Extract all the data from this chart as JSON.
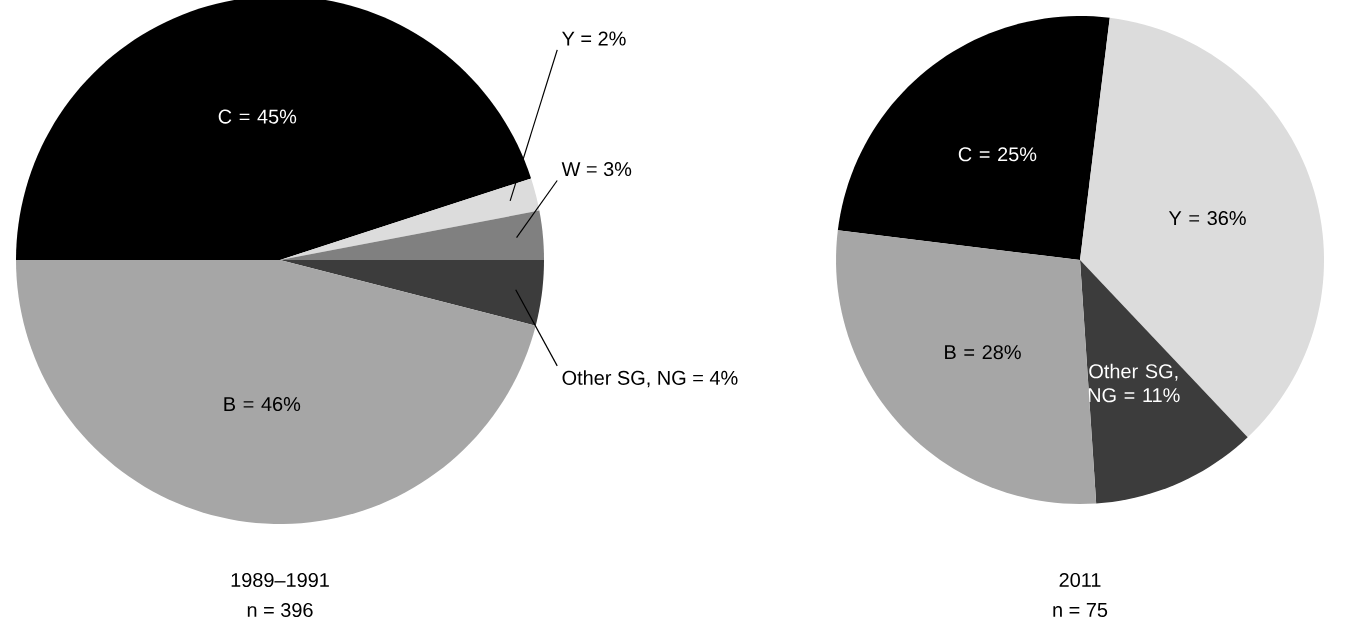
{
  "chart_data": [
    {
      "type": "pie",
      "title": "1989–1991",
      "subtitle": "n = 396",
      "categories": [
        "C = 45%",
        "Y = 2%",
        "W = 3%",
        "Other SG, NG = 4%",
        "B = 46%"
      ],
      "values": [
        45,
        2,
        3,
        4,
        46
      ],
      "colors": [
        "#000000",
        "#dcdcdc",
        "#808080",
        "#3c3c3c",
        "#a6a6a6"
      ]
    },
    {
      "type": "pie",
      "title": "2011",
      "subtitle": "n = 75",
      "categories": [
        "C = 25%",
        "Y = 36%",
        "Other SG, NG = 11%",
        "B = 28%"
      ],
      "values": [
        25,
        36,
        11,
        28
      ],
      "colors": [
        "#000000",
        "#dcdcdc",
        "#3c3c3c",
        "#a6a6a6"
      ]
    }
  ]
}
